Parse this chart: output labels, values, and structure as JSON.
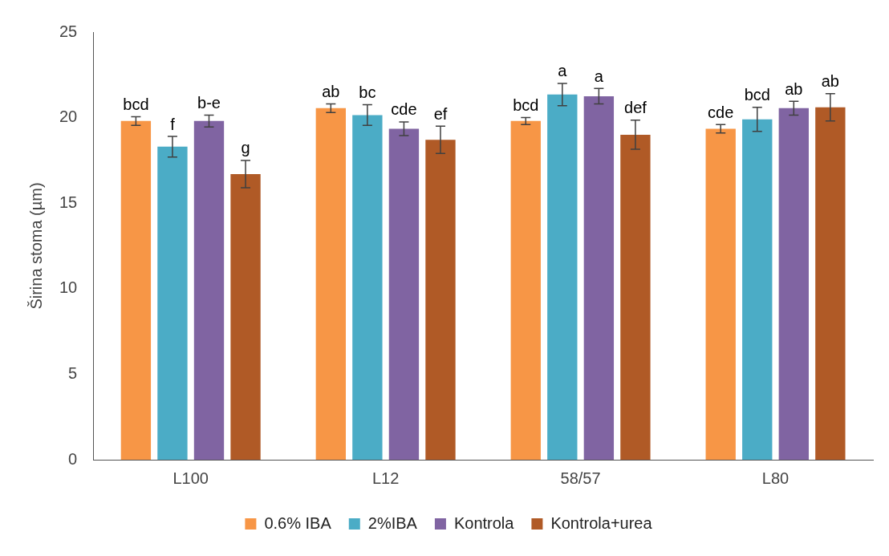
{
  "chart_data": {
    "type": "bar",
    "ylabel": "Širina stoma (µm)",
    "categories": [
      "L100",
      "L12",
      "58/57",
      "L80"
    ],
    "ylim": [
      0,
      25
    ],
    "yticks": [
      0,
      5,
      10,
      15,
      20,
      25
    ],
    "grid": false,
    "legend": "bottom",
    "series": [
      {
        "name": "0.6% IBA",
        "color": "#f79646",
        "values": [
          19.8,
          20.55,
          19.8,
          19.35
        ],
        "errors": [
          0.25,
          0.25,
          0.2,
          0.25
        ],
        "value_labels": [
          "bcd",
          "ab",
          "bcd",
          "cde"
        ]
      },
      {
        "name": "2%IBA",
        "color": "#4bacc6",
        "values": [
          18.3,
          20.15,
          21.35,
          19.9
        ],
        "errors": [
          0.6,
          0.6,
          0.65,
          0.7
        ],
        "value_labels": [
          "f",
          "bc",
          "a",
          "bcd"
        ]
      },
      {
        "name": "Kontrola",
        "color": "#8064a2",
        "values": [
          19.8,
          19.35,
          21.25,
          20.55
        ],
        "errors": [
          0.35,
          0.4,
          0.45,
          0.4
        ],
        "value_labels": [
          "b-e",
          "cde",
          "a",
          "ab"
        ]
      },
      {
        "name": "Kontrola+urea",
        "color": "#b05a26",
        "values": [
          16.7,
          18.7,
          19.0,
          20.6
        ],
        "errors": [
          0.8,
          0.8,
          0.85,
          0.8
        ],
        "value_labels": [
          "g",
          "ef",
          "def",
          "ab"
        ]
      }
    ]
  }
}
